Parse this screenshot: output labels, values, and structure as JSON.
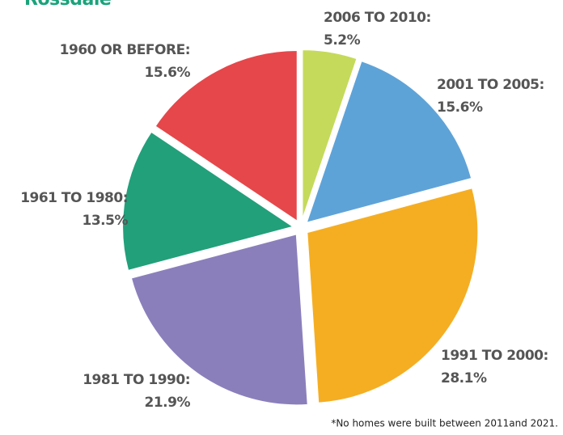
{
  "chart_data": {
    "type": "pie",
    "title": "Rossdale",
    "categories": [
      "2006 TO 2010:",
      "2001 TO 2005:",
      "1991 TO 2000:",
      "1981 TO 1990:",
      "1961 TO 1980:",
      "1960 OR BEFORE:"
    ],
    "values": [
      5.2,
      15.6,
      28.1,
      21.9,
      13.5,
      15.6
    ],
    "value_labels": [
      "5.2%",
      "15.6%",
      "28.1%",
      "21.9%",
      "13.5%",
      "15.6%"
    ],
    "colors": [
      "#c5da5a",
      "#5ea3d8",
      "#f5ae22",
      "#8b7fbb",
      "#22a07a",
      "#e5474b"
    ],
    "note": "*No homes were built between 2011and 2021."
  }
}
